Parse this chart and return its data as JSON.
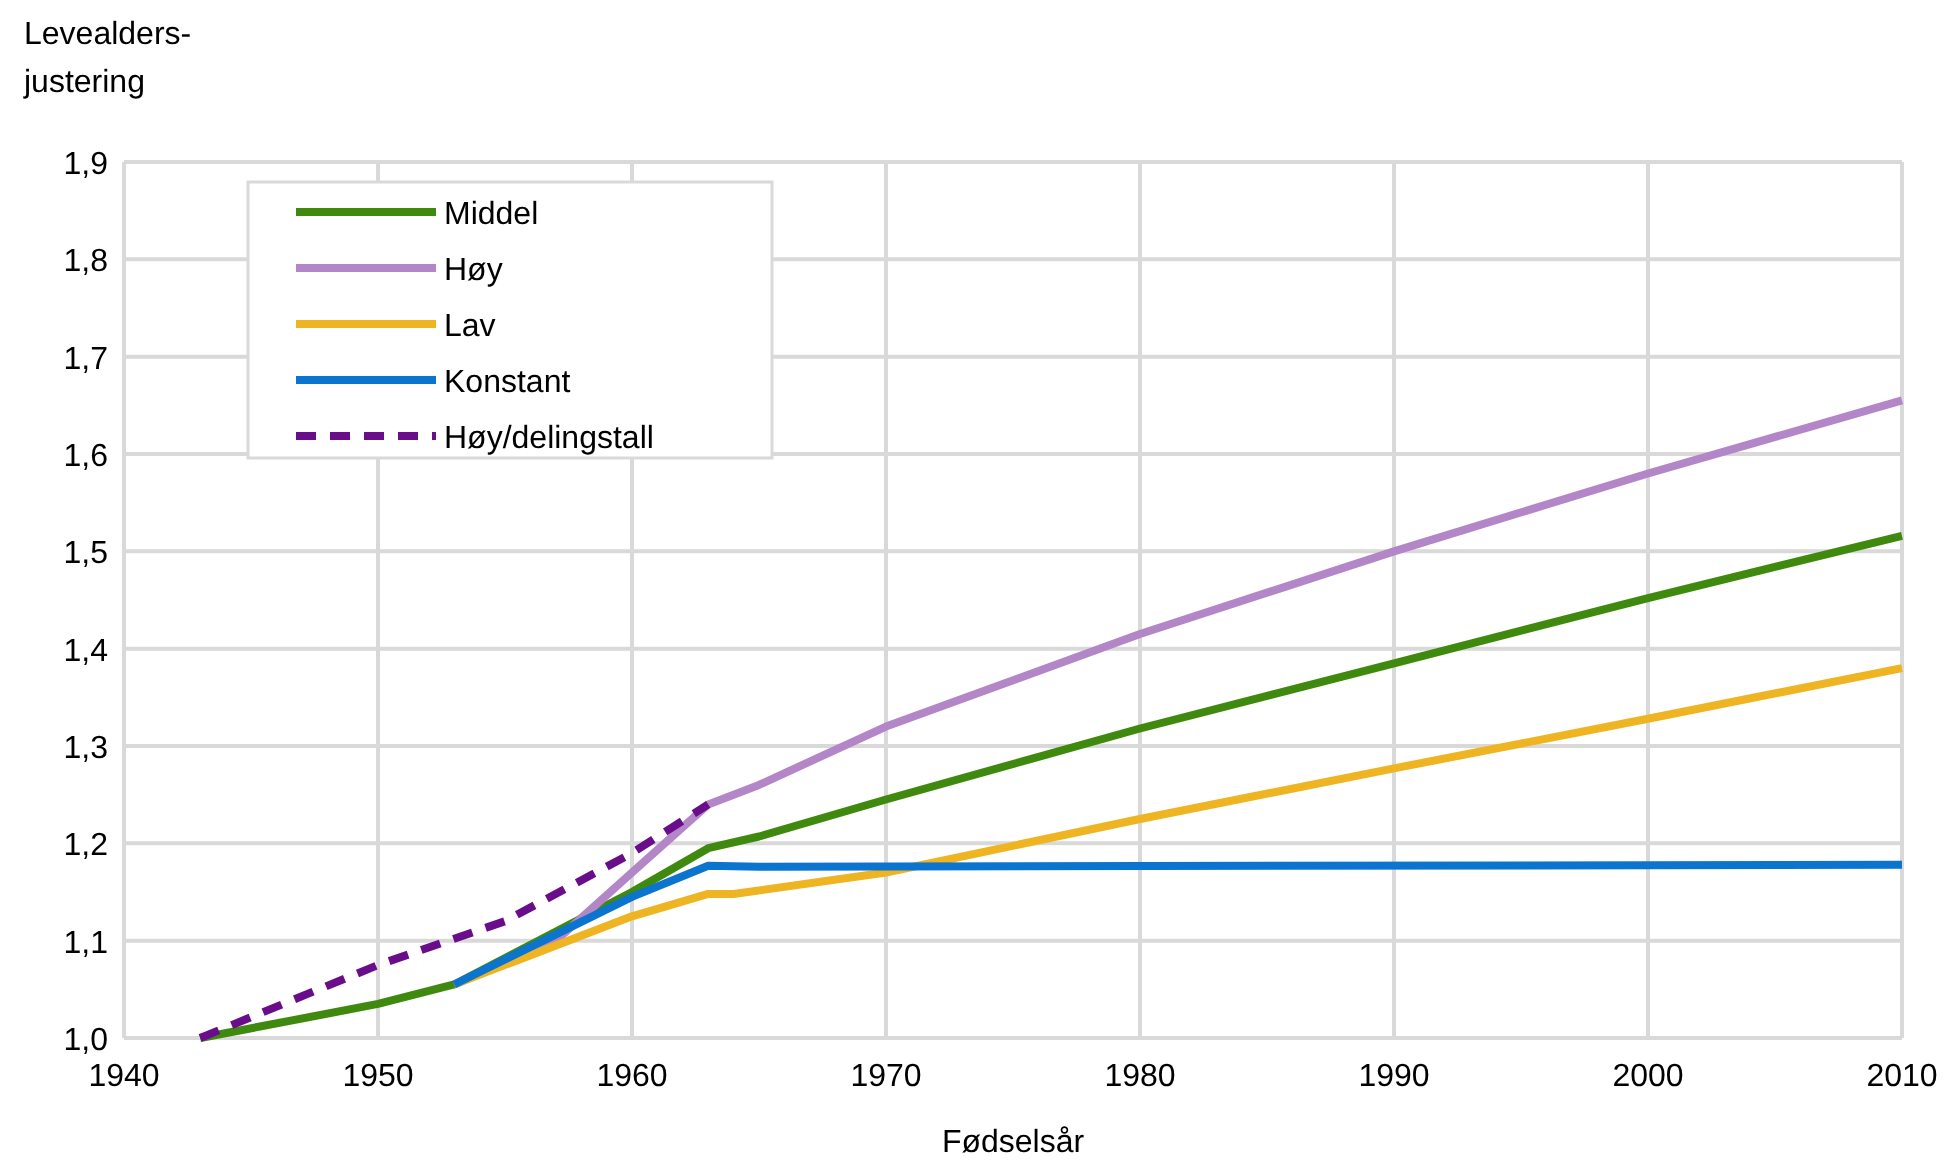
{
  "chart_data": {
    "type": "line",
    "ylabel": "Levealders-\njustering",
    "xlabel": "Fødselsår",
    "xlim": [
      1940,
      2010
    ],
    "xticks": [
      1940,
      1950,
      1960,
      1970,
      1980,
      1990,
      2000,
      2010
    ],
    "ylim": [
      1.0,
      1.9
    ],
    "yticks": [
      {
        "value": 1.0,
        "label": "1,0"
      },
      {
        "value": 1.1,
        "label": "1,1"
      },
      {
        "value": 1.2,
        "label": "1,2"
      },
      {
        "value": 1.3,
        "label": "1,3"
      },
      {
        "value": 1.4,
        "label": "1,4"
      },
      {
        "value": 1.5,
        "label": "1,5"
      },
      {
        "value": 1.6,
        "label": "1,6"
      },
      {
        "value": 1.7,
        "label": "1,7"
      },
      {
        "value": 1.8,
        "label": "1,8"
      },
      {
        "value": 1.9,
        "label": "1,9"
      }
    ],
    "grid": true,
    "legend": "top left",
    "series": [
      {
        "name": "Middel",
        "color": "#3f8a0e",
        "x": [
          1943,
          1950,
          1953,
          1960,
          1963,
          1965,
          1970,
          1980,
          1990,
          2000,
          2010
        ],
        "values": [
          1.0,
          1.035,
          1.055,
          1.15,
          1.195,
          1.207,
          1.245,
          1.318,
          1.385,
          1.452,
          1.516
        ]
      },
      {
        "name": "Høy",
        "color": "#b386c8",
        "x": [
          1953,
          1957,
          1960,
          1963,
          1965,
          1970,
          1980,
          1990,
          2000,
          2010
        ],
        "values": [
          1.055,
          1.1,
          1.17,
          1.24,
          1.26,
          1.32,
          1.415,
          1.5,
          1.58,
          1.655
        ]
      },
      {
        "name": "Lav",
        "color": "#eeb422",
        "x": [
          1953,
          1960,
          1963,
          1964,
          1970,
          1980,
          1990,
          2000,
          2010
        ],
        "values": [
          1.055,
          1.125,
          1.148,
          1.148,
          1.17,
          1.225,
          1.277,
          1.328,
          1.38
        ]
      },
      {
        "name": "Konstant",
        "color": "#0a74cf",
        "x": [
          1953,
          1960,
          1963,
          1965,
          2010
        ],
        "values": [
          1.055,
          1.145,
          1.177,
          1.176,
          1.178
        ]
      },
      {
        "name": "Høy/delingstall",
        "color": "#6a0d8a",
        "line_style": "dashed",
        "x": [
          1943,
          1950,
          1955,
          1960,
          1963
        ],
        "values": [
          1.0,
          1.075,
          1.12,
          1.19,
          1.24
        ]
      }
    ]
  }
}
